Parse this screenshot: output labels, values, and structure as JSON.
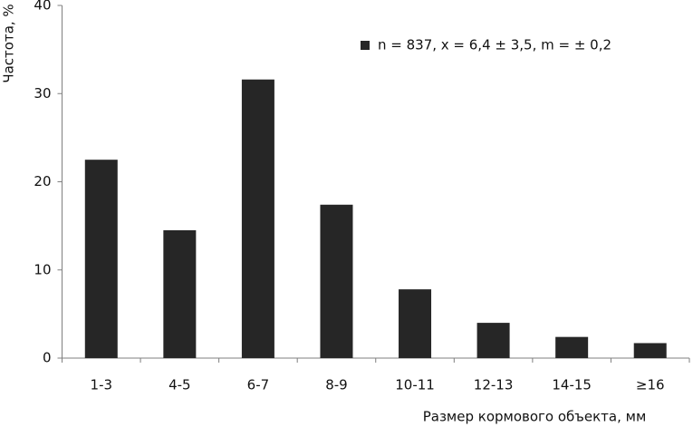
{
  "chart_data": {
    "type": "bar",
    "categories": [
      "1-3",
      "4-5",
      "6-7",
      "8-9",
      "10-11",
      "12-13",
      "14-15",
      "≥16"
    ],
    "series": [
      {
        "name": "n = 837, x = 6,4 ± 3,5, m = ± 0,2",
        "color": "#262626",
        "values": [
          22.5,
          14.5,
          31.6,
          17.4,
          7.8,
          4.0,
          2.4,
          1.7
        ]
      }
    ],
    "ylim": [
      0,
      40
    ],
    "yticks": [
      0,
      10,
      20,
      30,
      40
    ],
    "grid": false,
    "y_label": "Частота, %",
    "x_label": "Размер кормового объекта, мм",
    "legend": "top-right"
  }
}
